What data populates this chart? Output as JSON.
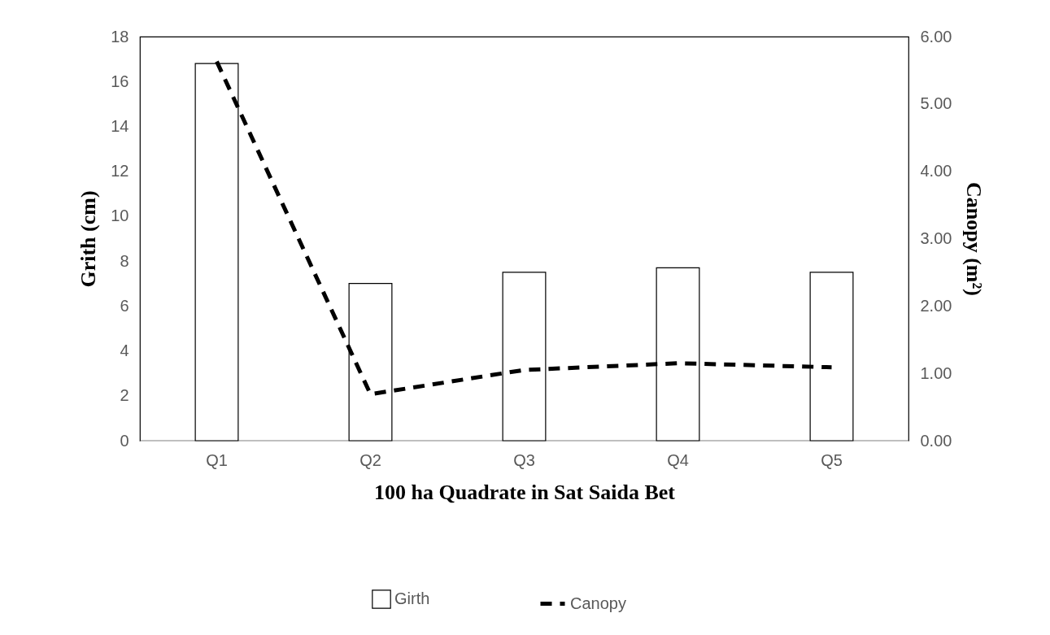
{
  "chart_data": {
    "type": "bar",
    "xlabel": "100 ha Quadrate in Sat Saida Bet",
    "ylabel": "Grith (cm)",
    "y2label": "Canopy (m²)",
    "categories": [
      "Q1",
      "Q2",
      "Q3",
      "Q4",
      "Q5"
    ],
    "series": [
      {
        "name": "Girth",
        "color": "#ffffff",
        "values": [
          16.8,
          7.0,
          7.5,
          7.7,
          7.5
        ]
      },
      {
        "name": "Canopy",
        "type": "line",
        "axis": "y2",
        "color": "#000000",
        "line_style": "dashed",
        "values": [
          5.63,
          0.69,
          1.05,
          1.15,
          1.09
        ]
      }
    ],
    "ylim": [
      0,
      18
    ],
    "yticks": [
      0,
      2,
      4,
      6,
      8,
      10,
      12,
      14,
      16,
      18
    ],
    "y2lim": [
      0,
      6
    ],
    "y2ticks": [
      {
        "value": 0,
        "label": "0.00"
      },
      {
        "value": 1,
        "label": "1.00"
      },
      {
        "value": 2,
        "label": "2.00"
      },
      {
        "value": 3,
        "label": "3.00"
      },
      {
        "value": 4,
        "label": "4.00"
      },
      {
        "value": 5,
        "label": "5.00"
      },
      {
        "value": 6,
        "label": "6.00"
      }
    ],
    "legend": "bottom",
    "grid": false
  }
}
